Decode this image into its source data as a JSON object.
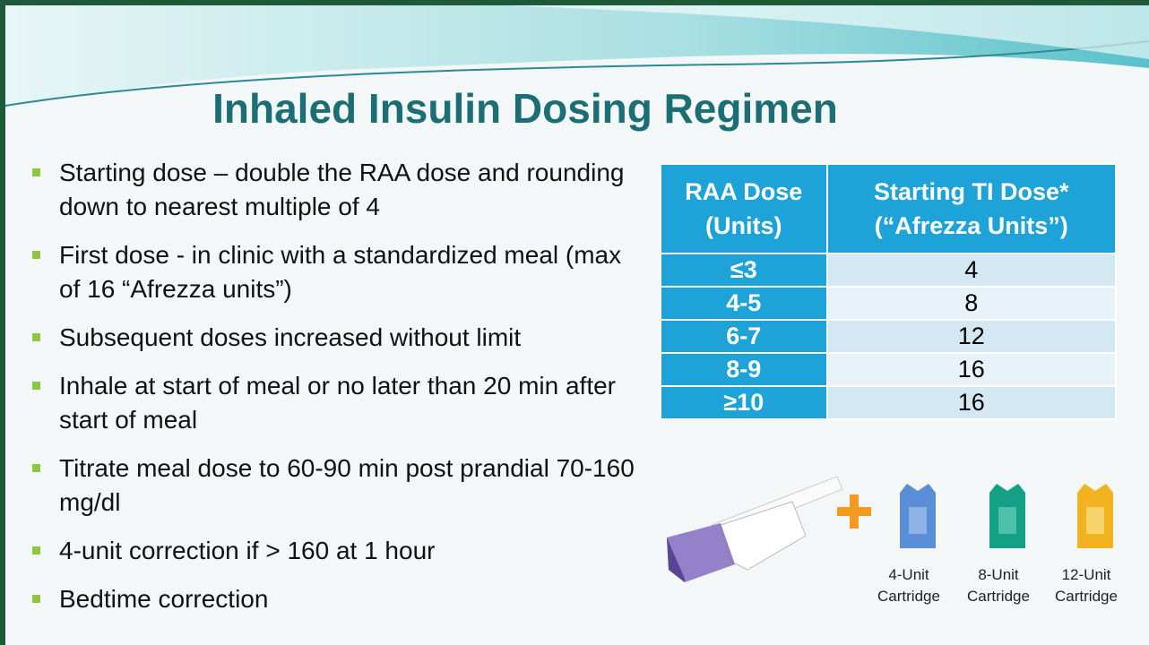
{
  "header": {
    "title": "Inhaled Insulin Dosing Regimen"
  },
  "bullets": [
    "Starting dose – double the RAA dose and rounding down to nearest multiple of 4",
    "First dose - in clinic with a standardized meal (max of 16 “Afrezza units”)",
    "Subsequent doses increased without limit",
    "Inhale at start of meal or no later than 20 min after start of meal",
    "Titrate meal dose to 60-90 min post prandial 70-160 mg/dl",
    "4-unit correction if > 160 at 1 hour",
    "Bedtime correction"
  ],
  "table": {
    "headers": [
      "RAA Dose (Units)",
      "Starting TI Dose* (“Afrezza Units”)"
    ],
    "rows": [
      [
        "≤3",
        4
      ],
      [
        "4-5",
        8
      ],
      [
        "6-7",
        12
      ],
      [
        "8-9",
        16
      ],
      [
        "≥10",
        16
      ]
    ]
  },
  "cartridges": [
    "4-Unit Cartridge",
    "8-Unit Cartridge",
    "12-Unit Cartridge"
  ]
}
